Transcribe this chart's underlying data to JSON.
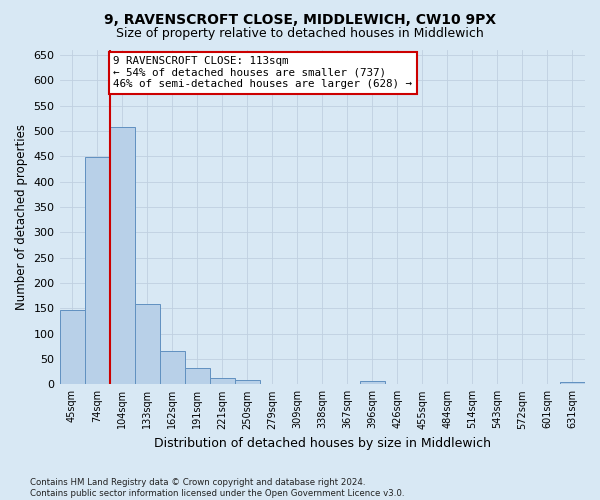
{
  "title1": "9, RAVENSCROFT CLOSE, MIDDLEWICH, CW10 9PX",
  "title2": "Size of property relative to detached houses in Middlewich",
  "xlabel": "Distribution of detached houses by size in Middlewich",
  "ylabel": "Number of detached properties",
  "categories": [
    "45sqm",
    "74sqm",
    "104sqm",
    "133sqm",
    "162sqm",
    "191sqm",
    "221sqm",
    "250sqm",
    "279sqm",
    "309sqm",
    "338sqm",
    "367sqm",
    "396sqm",
    "426sqm",
    "455sqm",
    "484sqm",
    "514sqm",
    "543sqm",
    "572sqm",
    "601sqm",
    "631sqm"
  ],
  "values": [
    147,
    449,
    507,
    158,
    66,
    33,
    13,
    8,
    0,
    0,
    0,
    0,
    6,
    0,
    0,
    0,
    0,
    0,
    0,
    0,
    5
  ],
  "bar_color": "#b8d0e8",
  "bar_edge_color": "#6090c0",
  "grid_color": "#c0d0e0",
  "background_color": "#d8e8f4",
  "plot_bg_color": "#d8e8f4",
  "vline_color": "#cc0000",
  "annotation_text": "9 RAVENSCROFT CLOSE: 113sqm\n← 54% of detached houses are smaller (737)\n46% of semi-detached houses are larger (628) →",
  "annotation_box_facecolor": "white",
  "annotation_box_edgecolor": "#cc0000",
  "footnote": "Contains HM Land Registry data © Crown copyright and database right 2024.\nContains public sector information licensed under the Open Government Licence v3.0.",
  "ylim": [
    0,
    660
  ],
  "yticks": [
    0,
    50,
    100,
    150,
    200,
    250,
    300,
    350,
    400,
    450,
    500,
    550,
    600,
    650
  ],
  "vline_bar_index": 2
}
